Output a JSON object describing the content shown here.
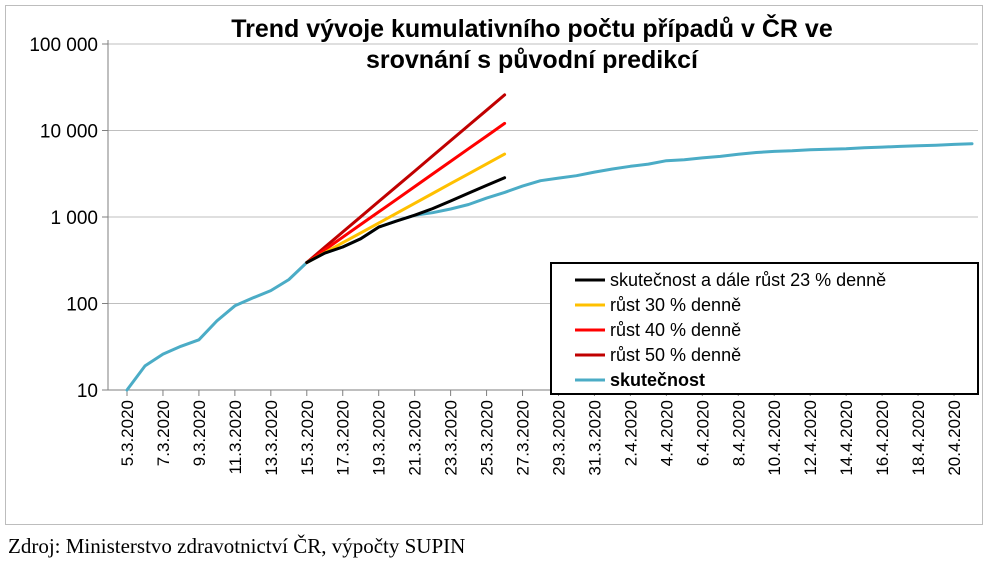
{
  "chart_data": {
    "type": "line",
    "title_lines": [
      "Trend vývoje kumulativního počtu případů v ČR ve",
      "srovnání s původní predikcí"
    ],
    "y_scale": "log",
    "ylim": [
      10,
      100000
    ],
    "yticks": [
      {
        "value": 10,
        "label": "10"
      },
      {
        "value": 100,
        "label": "100"
      },
      {
        "value": 1000,
        "label": "1 000"
      },
      {
        "value": 10000,
        "label": "10 000"
      },
      {
        "value": 100000,
        "label": "100 000"
      }
    ],
    "x_start": "2020-03-05",
    "x_end": "2020-04-21",
    "xtick_labels": [
      "5.3.2020",
      "7.3.2020",
      "9.3.2020",
      "11.3.2020",
      "13.3.2020",
      "15.3.2020",
      "17.3.2020",
      "19.3.2020",
      "21.3.2020",
      "23.3.2020",
      "25.3.2020",
      "27.3.2020",
      "29.3.2020",
      "31.3.2020",
      "2.4.2020",
      "4.4.2020",
      "6.4.2020",
      "8.4.2020",
      "10.4.2020",
      "12.4.2020",
      "14.4.2020",
      "16.4.2020",
      "18.4.2020",
      "20.4.2020"
    ],
    "grid": true,
    "legend_position": "right",
    "series": [
      {
        "name": "skutečnost a dále růst 23 % denně",
        "color": "#000000",
        "bold": false,
        "x": [
          "2020-03-15",
          "2020-03-16",
          "2020-03-17",
          "2020-03-18",
          "2020-03-19",
          "2020-03-20",
          "2020-03-21",
          "2020-03-22",
          "2020-03-23",
          "2020-03-24",
          "2020-03-25",
          "2020-03-26"
        ],
        "y": [
          298,
          383,
          450,
          560,
          765,
          900,
          1050,
          1250,
          1530,
          1890,
          2320,
          2850
        ]
      },
      {
        "name": "růst 30 % denně",
        "color": "#ffc000",
        "bold": false,
        "x": [
          "2020-03-15",
          "2020-03-16",
          "2020-03-17",
          "2020-03-18",
          "2020-03-19",
          "2020-03-20",
          "2020-03-21",
          "2020-03-22",
          "2020-03-23",
          "2020-03-24",
          "2020-03-25",
          "2020-03-26"
        ],
        "y": [
          298,
          387,
          504,
          655,
          851,
          1107,
          1439,
          1870,
          2431,
          3161,
          4109,
          5342
        ]
      },
      {
        "name": "růst 40 % denně",
        "color": "#ff0000",
        "bold": false,
        "x": [
          "2020-03-15",
          "2020-03-16",
          "2020-03-17",
          "2020-03-18",
          "2020-03-19",
          "2020-03-20",
          "2020-03-21",
          "2020-03-22",
          "2020-03-23",
          "2020-03-24",
          "2020-03-25",
          "2020-03-26"
        ],
        "y": [
          298,
          417,
          584,
          818,
          1145,
          1603,
          2244,
          3141,
          4398,
          6157,
          8619,
          12067
        ]
      },
      {
        "name": "růst 50 % denně",
        "color": "#c00000",
        "bold": false,
        "x": [
          "2020-03-15",
          "2020-03-16",
          "2020-03-17",
          "2020-03-18",
          "2020-03-19",
          "2020-03-20",
          "2020-03-21",
          "2020-03-22",
          "2020-03-23",
          "2020-03-24",
          "2020-03-25",
          "2020-03-26"
        ],
        "y": [
          298,
          447,
          671,
          1006,
          1509,
          2263,
          3395,
          5092,
          7638,
          11457,
          17186,
          25779
        ]
      },
      {
        "name": "skutečnost",
        "color": "#4bacc6",
        "bold": true,
        "x": [
          "2020-03-05",
          "2020-03-06",
          "2020-03-07",
          "2020-03-08",
          "2020-03-09",
          "2020-03-10",
          "2020-03-11",
          "2020-03-12",
          "2020-03-13",
          "2020-03-14",
          "2020-03-15",
          "2020-03-16",
          "2020-03-17",
          "2020-03-18",
          "2020-03-19",
          "2020-03-20",
          "2020-03-21",
          "2020-03-22",
          "2020-03-23",
          "2020-03-24",
          "2020-03-25",
          "2020-03-26",
          "2020-03-27",
          "2020-03-28",
          "2020-03-29",
          "2020-03-30",
          "2020-03-31",
          "2020-04-01",
          "2020-04-02",
          "2020-04-03",
          "2020-04-04",
          "2020-04-05",
          "2020-04-06",
          "2020-04-07",
          "2020-04-08",
          "2020-04-09",
          "2020-04-10",
          "2020-04-11",
          "2020-04-12",
          "2020-04-13",
          "2020-04-14",
          "2020-04-15",
          "2020-04-16",
          "2020-04-17",
          "2020-04-18",
          "2020-04-19",
          "2020-04-20",
          "2020-04-21"
        ],
        "y": [
          10,
          19,
          26,
          32,
          38,
          63,
          94,
          116,
          141,
          189,
          298,
          383,
          450,
          560,
          765,
          904,
          1047,
          1120,
          1236,
          1394,
          1654,
          1925,
          2279,
          2631,
          2817,
          3001,
          3308,
          3589,
          3858,
          4091,
          4472,
          4587,
          4822,
          5017,
          5312,
          5569,
          5732,
          5831,
          5991,
          6059,
          6141,
          6303,
          6433,
          6549,
          6654,
          6746,
          6900,
          7041
        ]
      }
    ]
  },
  "footer": {
    "source": "Zdroj: Ministerstvo zdravotnictví ČR, výpočty SUPIN"
  }
}
